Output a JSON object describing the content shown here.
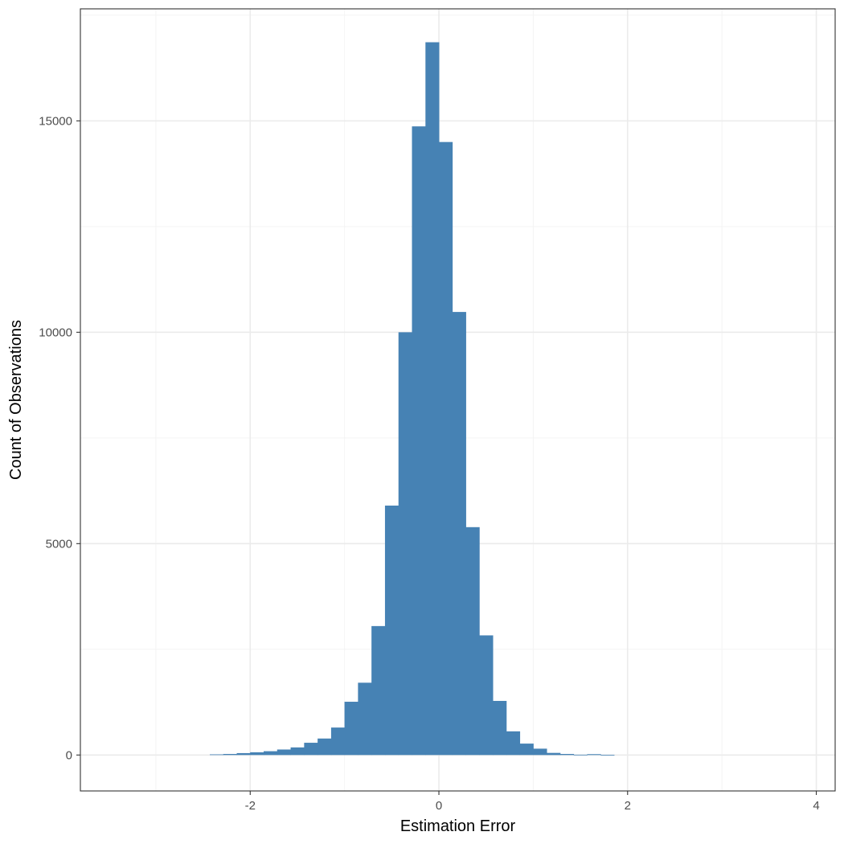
{
  "chart_data": {
    "type": "bar",
    "title": "",
    "xlabel": "Estimation Error",
    "ylabel": "Count of Observations",
    "xlim": [
      -3.8,
      4.2
    ],
    "ylim": [
      -850,
      17650
    ],
    "x_ticks": [
      -2,
      0,
      2,
      4
    ],
    "x_tick_labels": [
      "-2",
      "0",
      "2",
      "4"
    ],
    "y_ticks": [
      0,
      5000,
      10000,
      15000
    ],
    "y_tick_labels": [
      "0",
      "5000",
      "10000",
      "15000"
    ],
    "grid": true,
    "legend": "none",
    "bar_color": "#4682b4",
    "bin_width": 0.143,
    "bins": [
      {
        "x": -2.357,
        "count": 15
      },
      {
        "x": -2.214,
        "count": 25
      },
      {
        "x": -2.071,
        "count": 45
      },
      {
        "x": -1.929,
        "count": 65
      },
      {
        "x": -1.786,
        "count": 90
      },
      {
        "x": -1.643,
        "count": 130
      },
      {
        "x": -1.5,
        "count": 180
      },
      {
        "x": -1.357,
        "count": 290
      },
      {
        "x": -1.214,
        "count": 390
      },
      {
        "x": -1.071,
        "count": 650
      },
      {
        "x": -0.929,
        "count": 1260
      },
      {
        "x": -0.786,
        "count": 1710
      },
      {
        "x": -0.643,
        "count": 3050
      },
      {
        "x": -0.5,
        "count": 5900
      },
      {
        "x": -0.357,
        "count": 10000
      },
      {
        "x": -0.214,
        "count": 14870
      },
      {
        "x": -0.071,
        "count": 16860
      },
      {
        "x": 0.071,
        "count": 14500
      },
      {
        "x": 0.214,
        "count": 10480
      },
      {
        "x": 0.357,
        "count": 5390
      },
      {
        "x": 0.5,
        "count": 2830
      },
      {
        "x": 0.643,
        "count": 1280
      },
      {
        "x": 0.786,
        "count": 560
      },
      {
        "x": 0.929,
        "count": 270
      },
      {
        "x": 1.071,
        "count": 150
      },
      {
        "x": 1.214,
        "count": 50
      },
      {
        "x": 1.357,
        "count": 25
      },
      {
        "x": 1.5,
        "count": 8
      },
      {
        "x": 1.643,
        "count": 20
      },
      {
        "x": 1.786,
        "count": 5
      }
    ],
    "colors": {
      "panel_border": "#333333",
      "grid_major": "#ebebeb",
      "grid_minor": "#f4f4f4",
      "tick_label": "#4d4d4d",
      "axis_title": "#000000"
    }
  }
}
